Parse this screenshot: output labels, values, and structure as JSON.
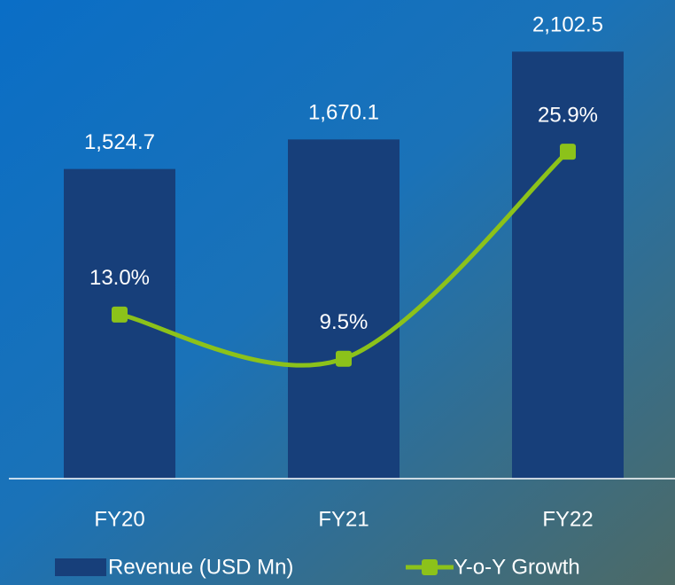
{
  "chart_data": {
    "type": "bar_line",
    "categories": [
      "FY20",
      "FY21",
      "FY22"
    ],
    "series": [
      {
        "name": "Revenue (USD Mn)",
        "type": "bar",
        "color": "#173f7a",
        "values": [
          1524.7,
          1670.1,
          2102.5
        ],
        "value_labels": [
          "1,524.7",
          "1,670.1",
          "2,102.5"
        ]
      },
      {
        "name": "Y-o-Y Growth",
        "type": "line",
        "axis": "y2",
        "color": "#8cc21a",
        "smooth": true,
        "values": [
          13.0,
          9.5,
          25.9
        ],
        "value_labels": [
          "13.0%",
          "9.5%",
          "25.9%"
        ]
      }
    ],
    "ylim": [
      0,
      2300
    ],
    "y2lim": [
      0,
      37
    ],
    "grid": false,
    "legend": "bottom"
  }
}
